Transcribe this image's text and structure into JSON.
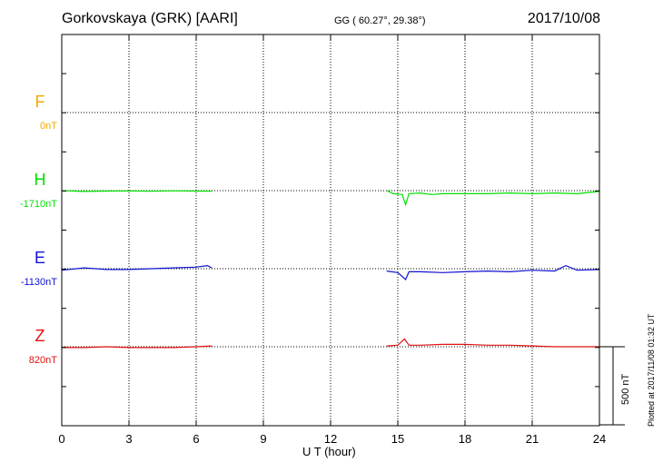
{
  "header": {
    "station": "Gorkovskaya (GRK)  [AARI]",
    "coords": "GG ( 60.27°,  29.38°)",
    "date": "2017/10/08"
  },
  "footer": {
    "xlabel": "U T (hour)",
    "plotted": "Plotted at 2017/11/08 01:32 UT",
    "scale": "500 nT"
  },
  "chart_data": {
    "type": "line",
    "title": "Gorkovskaya (GRK)  [AARI]",
    "xlabel": "U T (hour)",
    "ylabel": "",
    "xlim": [
      0,
      24
    ],
    "xticks": [
      0,
      3,
      6,
      9,
      12,
      15,
      18,
      21,
      24
    ],
    "x_tick_labels": [
      "0",
      "3",
      "6",
      "9",
      "12",
      "15",
      "18",
      "21",
      "24"
    ],
    "grid": true,
    "scale_bar_nT": 500,
    "data_gap_hours": [
      6.7,
      14.5
    ],
    "series": [
      {
        "name": "F",
        "baseline": "0nT",
        "color": "#f0a800",
        "points": []
      },
      {
        "name": "H",
        "baseline": "-1710nT",
        "color": "#00e000",
        "points": [
          [
            0,
            0
          ],
          [
            1,
            -5
          ],
          [
            2,
            -3
          ],
          [
            3,
            -2
          ],
          [
            4,
            -4
          ],
          [
            5,
            -1
          ],
          [
            6,
            -3
          ],
          [
            6.7,
            -4
          ],
          [
            14.5,
            0
          ],
          [
            14.8,
            -20
          ],
          [
            15.2,
            -25
          ],
          [
            15.35,
            -90
          ],
          [
            15.5,
            -20
          ],
          [
            16,
            -15
          ],
          [
            16.5,
            -25
          ],
          [
            17,
            -20
          ],
          [
            18,
            -20
          ],
          [
            19,
            -20
          ],
          [
            20,
            -15
          ],
          [
            21,
            -20
          ],
          [
            22,
            -15
          ],
          [
            23,
            -20
          ],
          [
            24,
            -5
          ]
        ]
      },
      {
        "name": "E",
        "baseline": "-1130nT",
        "color": "#1010d0",
        "points": [
          [
            0,
            -10
          ],
          [
            1,
            5
          ],
          [
            2,
            -5
          ],
          [
            3,
            -5
          ],
          [
            4,
            0
          ],
          [
            5,
            5
          ],
          [
            6,
            10
          ],
          [
            6.5,
            20
          ],
          [
            6.7,
            5
          ],
          [
            14.5,
            -15
          ],
          [
            15,
            -25
          ],
          [
            15.35,
            -70
          ],
          [
            15.5,
            -20
          ],
          [
            16,
            -20
          ],
          [
            17,
            -25
          ],
          [
            18,
            -20
          ],
          [
            19,
            -15
          ],
          [
            20,
            -20
          ],
          [
            21,
            -10
          ],
          [
            22,
            -15
          ],
          [
            22.5,
            20
          ],
          [
            23,
            -10
          ],
          [
            24,
            -5
          ]
        ]
      },
      {
        "name": "Z",
        "baseline": "820nT",
        "color": "#e01010",
        "points": [
          [
            0,
            -5
          ],
          [
            1,
            -5
          ],
          [
            2,
            0
          ],
          [
            3,
            -5
          ],
          [
            4,
            -5
          ],
          [
            5,
            -5
          ],
          [
            6,
            0
          ],
          [
            6.7,
            5
          ],
          [
            14.5,
            5
          ],
          [
            15,
            10
          ],
          [
            15.3,
            50
          ],
          [
            15.5,
            10
          ],
          [
            16,
            10
          ],
          [
            17,
            15
          ],
          [
            18,
            15
          ],
          [
            19,
            10
          ],
          [
            20,
            10
          ],
          [
            21,
            5
          ],
          [
            22,
            0
          ],
          [
            23,
            0
          ],
          [
            24,
            0
          ]
        ]
      }
    ]
  }
}
